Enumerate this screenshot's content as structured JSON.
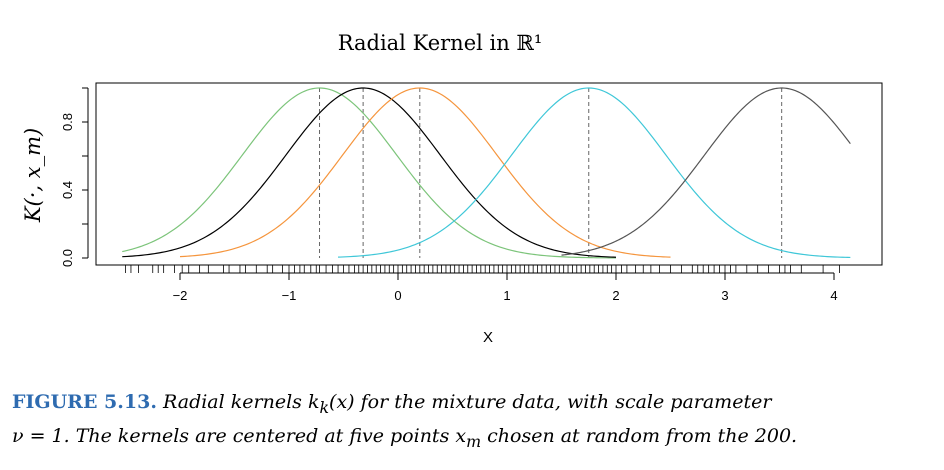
{
  "chart_data": {
    "type": "line",
    "title": "Radial Kernel in ℝ¹",
    "xlabel": "X",
    "ylabel": "K(·, x_m)",
    "xlim": [
      -2.6,
      4.2
    ],
    "ylim": [
      0.0,
      1.0
    ],
    "xticks": [
      "−2",
      "−1",
      "0",
      "1",
      "2",
      "3",
      "4"
    ],
    "yticks": [
      "0.0",
      "0.4",
      "0.8"
    ],
    "nu": 1,
    "centers": [
      -0.72,
      -0.32,
      0.2,
      1.75,
      3.52
    ],
    "series": [
      {
        "center": -0.72,
        "color": "#7cc47a",
        "x_start": -2.53,
        "x_end": 2.0
      },
      {
        "center": -0.32,
        "color": "#000000",
        "x_start": -2.53,
        "x_end": 2.0
      },
      {
        "center": 0.2,
        "color": "#f5953d",
        "x_start": -2.0,
        "x_end": 2.5
      },
      {
        "center": 1.75,
        "color": "#3fc7d8",
        "x_start": -0.55,
        "x_end": 4.15
      },
      {
        "center": 3.52,
        "color": "#555555",
        "x_start": 1.5,
        "x_end": 4.15
      }
    ],
    "rug_x": [
      -2.5,
      -2.45,
      -2.38,
      -2.25,
      -2.2,
      -2.15,
      -2.05,
      -1.98,
      -1.92,
      -1.82,
      -1.74,
      -1.6,
      -1.55,
      -1.45,
      -1.4,
      -1.3,
      -1.2,
      -1.15,
      -1.06,
      -1.0,
      -0.95,
      -0.9,
      -0.86,
      -0.8,
      -0.75,
      -0.72,
      -0.66,
      -0.6,
      -0.55,
      -0.5,
      -0.45,
      -0.4,
      -0.36,
      -0.32,
      -0.28,
      -0.24,
      -0.2,
      -0.16,
      -0.12,
      -0.08,
      -0.04,
      0.0,
      0.04,
      0.08,
      0.12,
      0.16,
      0.2,
      0.24,
      0.28,
      0.32,
      0.36,
      0.4,
      0.44,
      0.48,
      0.52,
      0.56,
      0.6,
      0.64,
      0.68,
      0.72,
      0.76,
      0.8,
      0.84,
      0.88,
      0.92,
      0.96,
      1.0,
      1.04,
      1.08,
      1.12,
      1.16,
      1.2,
      1.24,
      1.28,
      1.32,
      1.36,
      1.4,
      1.44,
      1.48,
      1.52,
      1.56,
      1.6,
      1.64,
      1.68,
      1.72,
      1.76,
      1.8,
      1.84,
      1.88,
      1.92,
      1.96,
      2.0,
      2.05,
      2.1,
      2.18,
      2.25,
      2.32,
      2.4,
      2.5,
      2.6,
      2.7,
      2.75,
      2.8,
      2.85,
      2.9,
      2.95,
      3.0,
      3.05,
      3.1,
      3.2,
      3.3,
      3.4,
      3.5,
      3.55,
      3.6,
      3.7,
      3.9,
      4.05
    ]
  },
  "caption": {
    "figure_label": "FIGURE 5.13.",
    "line1": "Radial kernels k",
    "line1_sub": "k",
    "line1_rest": "(x) for the mixture data, with scale parameter",
    "line2": "ν = 1. The kernels are centered at five points x",
    "line2_sub": "m",
    "line2_rest": " chosen at random from the 200."
  }
}
